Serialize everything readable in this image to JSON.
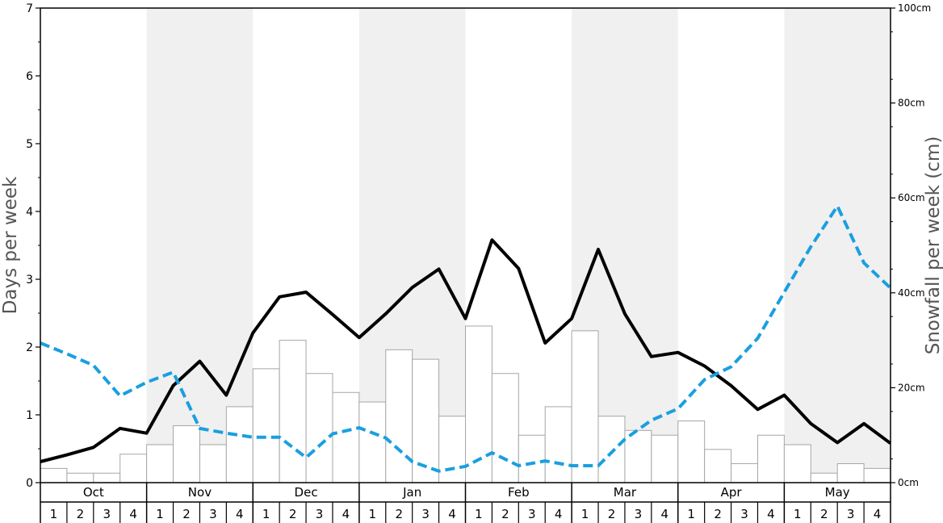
{
  "chart_data": {
    "type": "bar",
    "title": "",
    "ylabel_left": "Days per week",
    "ylabel_right": "Snowfall per week (cm)",
    "ylim_left": [
      0,
      7
    ],
    "ylim_right": [
      0,
      100
    ],
    "left_ticks": [
      "0",
      "1",
      "2",
      "3",
      "4",
      "5",
      "6",
      "7"
    ],
    "right_ticks": [
      "0cm",
      "20cm",
      "40cm",
      "60cm",
      "80cm",
      "100cm"
    ],
    "months": [
      "Oct",
      "Nov",
      "Dec",
      "Jan",
      "Feb",
      "Mar",
      "Apr",
      "May"
    ],
    "weeks": [
      "1",
      "2",
      "3",
      "4"
    ],
    "grid": false,
    "alternating_month_shading": true,
    "series": [
      {
        "type": "bar",
        "axis": "right",
        "unit": "cm",
        "values": [
          3,
          2,
          2,
          6,
          8,
          12,
          8,
          16,
          24,
          30,
          23,
          19,
          17,
          28,
          26,
          14,
          33,
          23,
          10,
          16,
          32,
          14,
          11,
          10,
          13,
          7,
          4,
          10,
          8,
          2,
          4,
          3
        ]
      },
      {
        "type": "line",
        "axis": "left",
        "style": "solid",
        "color": "#000000",
        "values": [
          0.31,
          0.41,
          0.52,
          0.8,
          0.73,
          1.43,
          1.79,
          1.29,
          2.21,
          2.74,
          2.81,
          2.48,
          2.14,
          2.49,
          2.88,
          3.15,
          2.42,
          3.58,
          3.16,
          2.06,
          2.42,
          3.44,
          2.49,
          1.86,
          1.92,
          1.72,
          1.43,
          1.08,
          1.29,
          0.87,
          0.59,
          0.87,
          0.58
        ]
      },
      {
        "type": "line",
        "axis": "left",
        "style": "dashed",
        "color": "#1a9fe0",
        "values": [
          2.06,
          1.9,
          1.73,
          1.28,
          1.48,
          1.63,
          0.8,
          0.73,
          0.67,
          0.67,
          0.37,
          0.72,
          0.81,
          0.66,
          0.31,
          0.17,
          0.24,
          0.44,
          0.25,
          0.32,
          0.25,
          0.25,
          0.64,
          0.92,
          1.09,
          1.52,
          1.71,
          2.13,
          2.81,
          3.48,
          4.08,
          3.24,
          2.87
        ]
      }
    ]
  }
}
